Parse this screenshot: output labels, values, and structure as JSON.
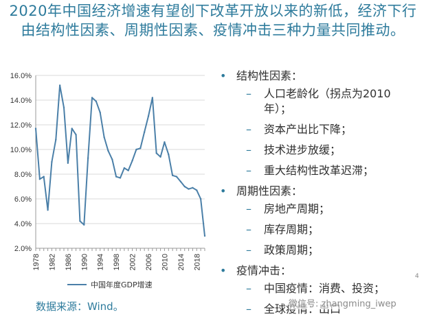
{
  "title": "2020年中国经济增速有望创下改革开放以来的新低，经济下行由结构性因素、周期性因素、疫情冲击三种力量共同推动。",
  "source": "数据来源：Wind。",
  "watermark": "微信号: zhangming_iwep",
  "page_number": "4",
  "bullets": [
    {
      "label": "结构性因素：",
      "items": [
        "人口老龄化（拐点为2010年）；",
        "资本产出比下降；",
        "技术进步放缓；",
        "重大结构性改革迟滞；"
      ]
    },
    {
      "label": "周期性因素：",
      "items": [
        "房地产周期；",
        "库存周期；",
        "政策周期；"
      ]
    },
    {
      "label": "疫情冲击：",
      "items": [
        "中国疫情：消费、投资；",
        "全球疫情：出口"
      ]
    }
  ],
  "chart_data": {
    "type": "line",
    "x": [
      1978,
      1979,
      1980,
      1981,
      1982,
      1983,
      1984,
      1985,
      1986,
      1987,
      1988,
      1989,
      1990,
      1991,
      1992,
      1993,
      1994,
      1995,
      1996,
      1997,
      1998,
      1999,
      2000,
      2001,
      2002,
      2003,
      2004,
      2005,
      2006,
      2007,
      2008,
      2009,
      2010,
      2011,
      2012,
      2013,
      2014,
      2015,
      2016,
      2017,
      2018,
      2019,
      2020
    ],
    "series": [
      {
        "name": "中国年度GDP增速",
        "values": [
          11.7,
          7.6,
          7.8,
          5.1,
          9.0,
          10.8,
          15.2,
          13.4,
          8.9,
          11.7,
          11.2,
          4.2,
          3.9,
          9.3,
          14.2,
          13.9,
          13.0,
          11.0,
          9.9,
          9.2,
          7.8,
          7.7,
          8.5,
          8.3,
          9.1,
          10.0,
          10.1,
          11.4,
          12.7,
          14.2,
          9.7,
          9.4,
          10.6,
          9.6,
          7.9,
          7.8,
          7.4,
          7.0,
          6.8,
          6.9,
          6.7,
          6.0,
          3.0
        ],
        "color": "#4a7fa8"
      }
    ],
    "ylim": [
      2.0,
      16.0
    ],
    "yticks": [
      "2.0%",
      "4.0%",
      "6.0%",
      "8.0%",
      "10.0%",
      "12.0%",
      "14.0%",
      "16.0%"
    ],
    "xticks": [
      "1978",
      "1982",
      "1986",
      "1990",
      "1994",
      "1998",
      "2002",
      "2006",
      "2010",
      "2014",
      "2018"
    ],
    "grid": true,
    "legend": "bottom"
  }
}
